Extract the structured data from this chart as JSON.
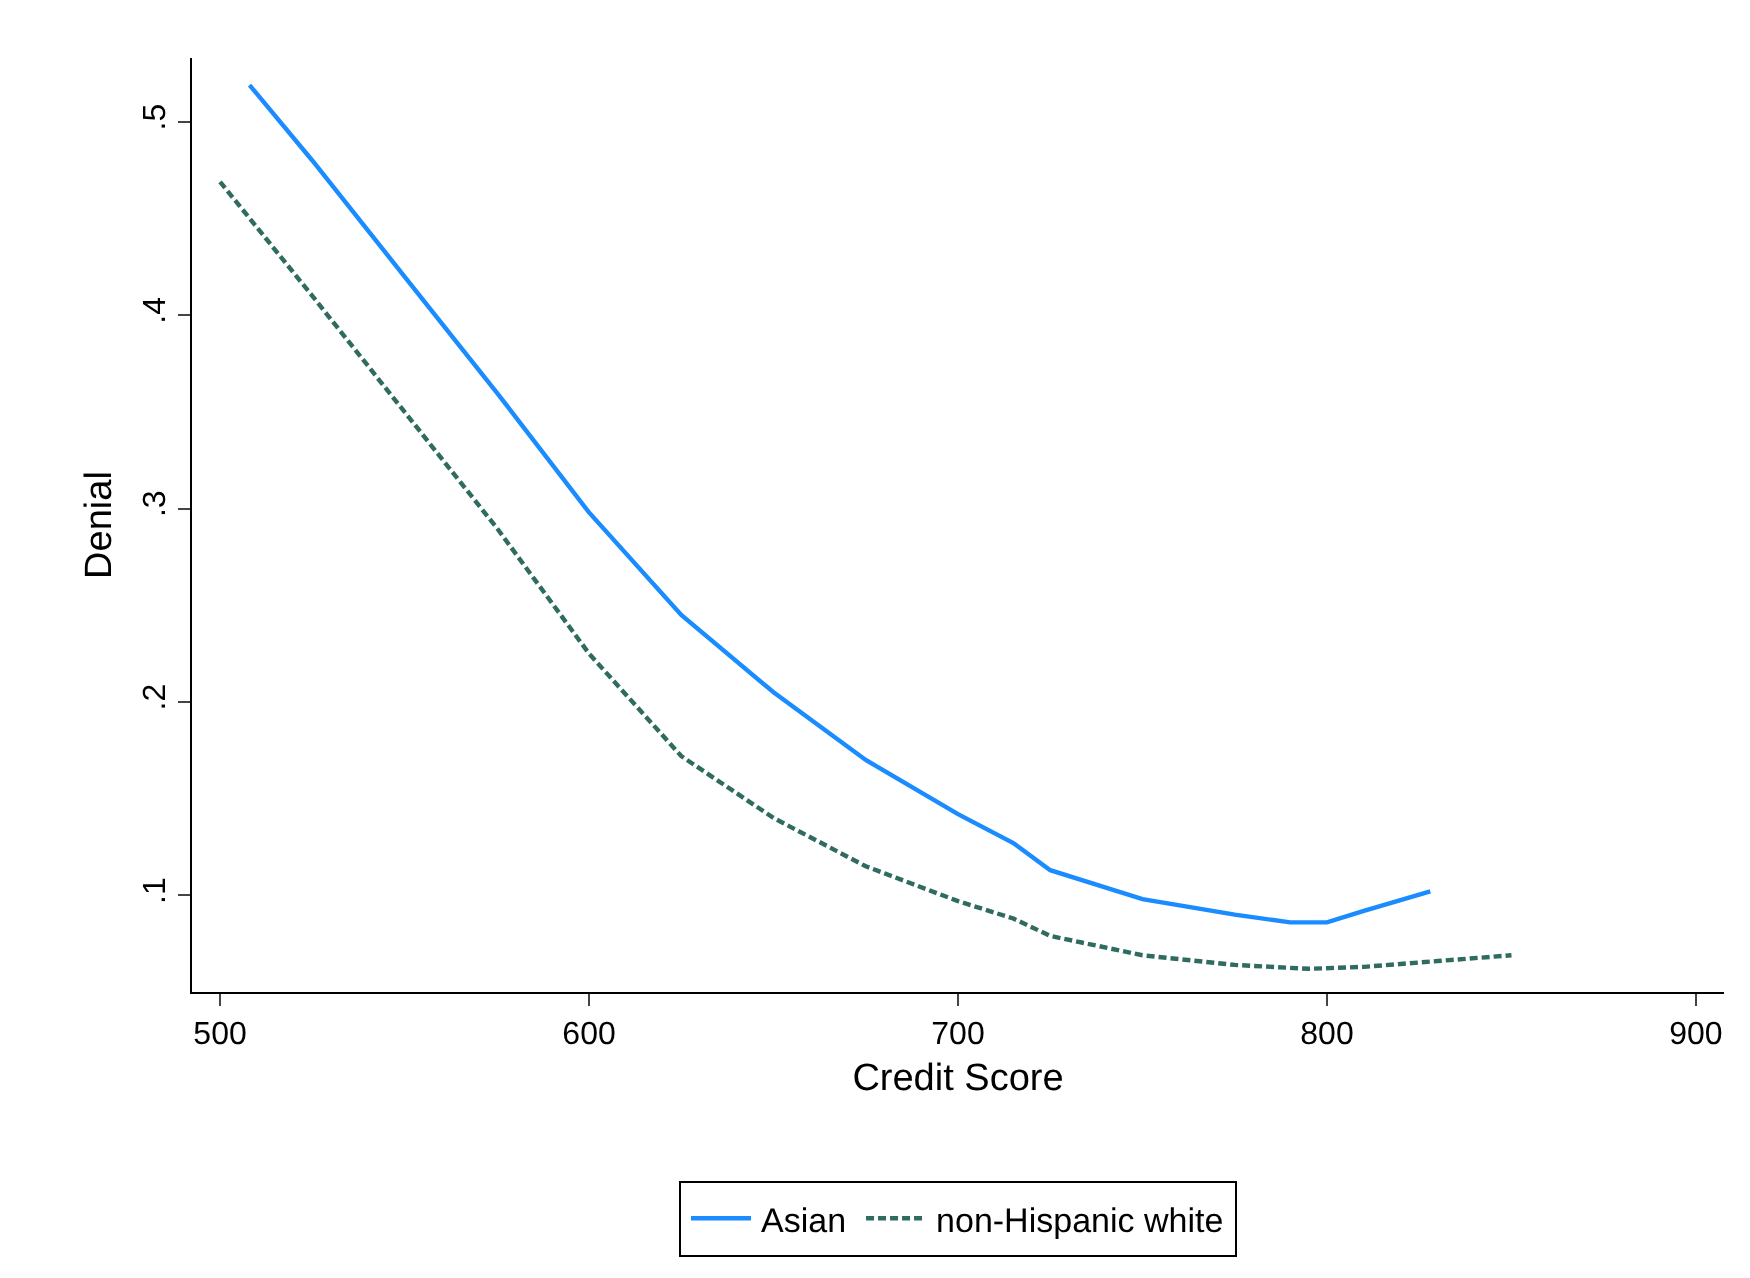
{
  "chart_data": {
    "type": "line",
    "xlabel": "Credit Score",
    "ylabel": "Denial",
    "xlim": [
      492.4,
      907.6
    ],
    "xticks": [
      500,
      600,
      700,
      800,
      900
    ],
    "ylim": [
      0.05,
      0.533
    ],
    "yticks": [
      {
        "value": 0.1,
        "label": ".1"
      },
      {
        "value": 0.2,
        "label": ".2"
      },
      {
        "value": 0.3,
        "label": ".3"
      },
      {
        "value": 0.4,
        "label": ".4"
      },
      {
        "value": 0.5,
        "label": ".5"
      }
    ],
    "grid": false,
    "legend": "bottom",
    "marker": "none",
    "series": [
      {
        "name": "Asian",
        "color": "#1a8cff",
        "line_style": "solid",
        "x": [
          508,
          525,
          550,
          575,
          600,
          625,
          650,
          675,
          700,
          715,
          725,
          750,
          775,
          790,
          800,
          810,
          828
        ],
        "values": [
          0.519,
          0.48,
          0.42,
          0.36,
          0.298,
          0.245,
          0.205,
          0.17,
          0.142,
          0.127,
          0.113,
          0.098,
          0.09,
          0.086,
          0.086,
          0.092,
          0.102
        ]
      },
      {
        "name": "non-Hispanic white",
        "color": "#2f6b5f",
        "line_style": "dashed",
        "x": [
          500,
          525,
          550,
          575,
          600,
          625,
          650,
          675,
          700,
          715,
          725,
          750,
          775,
          795,
          810,
          830,
          850
        ],
        "values": [
          0.469,
          0.41,
          0.35,
          0.29,
          0.225,
          0.172,
          0.14,
          0.115,
          0.097,
          0.088,
          0.079,
          0.069,
          0.064,
          0.062,
          0.063,
          0.066,
          0.069
        ]
      }
    ]
  }
}
